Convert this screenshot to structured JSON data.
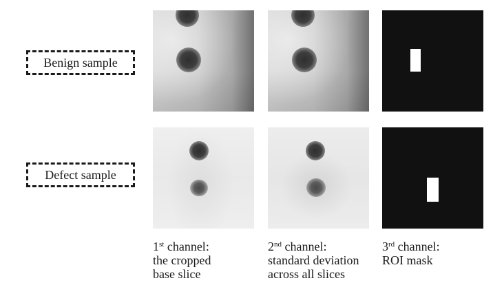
{
  "rows": [
    {
      "label": "Benign sample"
    },
    {
      "label": "Defect sample"
    }
  ],
  "columns": [
    {
      "ordinal": "1",
      "ordinal_suffix": "st",
      "heading": " channel:",
      "lines": [
        "the cropped",
        "base slice"
      ]
    },
    {
      "ordinal": "2",
      "ordinal_suffix": "nd",
      "heading": " channel:",
      "lines": [
        "standard deviation",
        "across all slices"
      ]
    },
    {
      "ordinal": "3",
      "ordinal_suffix": "rd",
      "heading": " channel:",
      "lines": [
        "ROI mask"
      ]
    }
  ],
  "colors": {
    "mask_background": "#111111",
    "mask_roi": "#ffffff",
    "label_border": "#1a1a1a"
  }
}
